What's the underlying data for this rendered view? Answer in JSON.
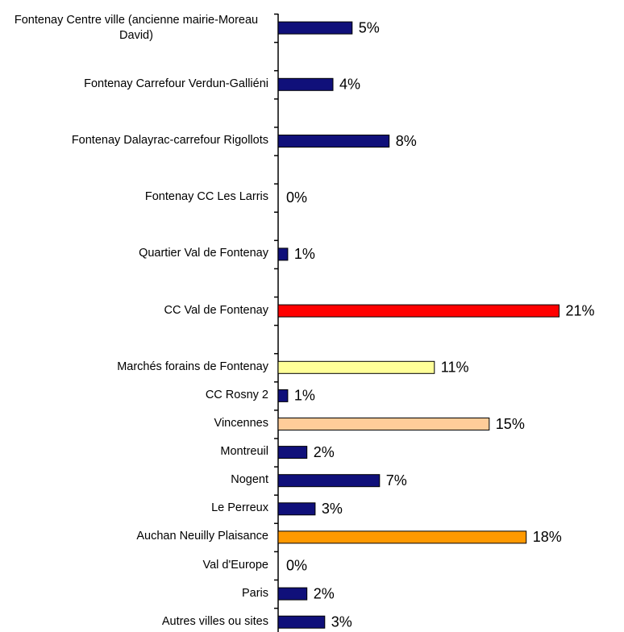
{
  "chart_data": {
    "type": "hbar",
    "categories": [
      "Fontenay Centre ville (ancienne mairie-Moreau David)",
      "Fontenay Carrefour Verdun-Galliéni",
      "Fontenay Dalayrac-carrefour Rigollots",
      "Fontenay CC Les Larris",
      "Quartier Val de Fontenay",
      "CC Val de Fontenay",
      "Marchés forains de Fontenay",
      "CC Rosny 2",
      "Vincennes",
      "Montreuil",
      "Nogent",
      "Le Perreux",
      "Auchan Neuilly Plaisance",
      "Val d'Europe",
      "Paris",
      "Autres villes ou sites"
    ],
    "values": [
      5.4,
      4.0,
      8.1,
      0,
      0.7,
      20.5,
      11.4,
      0.7,
      15.4,
      2.1,
      7.4,
      2.7,
      18.1,
      0,
      2.1,
      3.4
    ],
    "value_labels": [
      "5%",
      "4%",
      "8%",
      "0%",
      "1%",
      "21%",
      "11%",
      "1%",
      "15%",
      "2%",
      "7%",
      "3%",
      "18%",
      "0%",
      "2%",
      "3%"
    ],
    "colors": [
      "#10107a",
      "#10107a",
      "#10107a",
      "#10107a",
      "#10107a",
      "#ff0000",
      "#ffff99",
      "#10107a",
      "#ffcc99",
      "#10107a",
      "#10107a",
      "#10107a",
      "#ff9900",
      "#10107a",
      "#10107a",
      "#10107a"
    ],
    "xlim": [
      0,
      25
    ]
  }
}
